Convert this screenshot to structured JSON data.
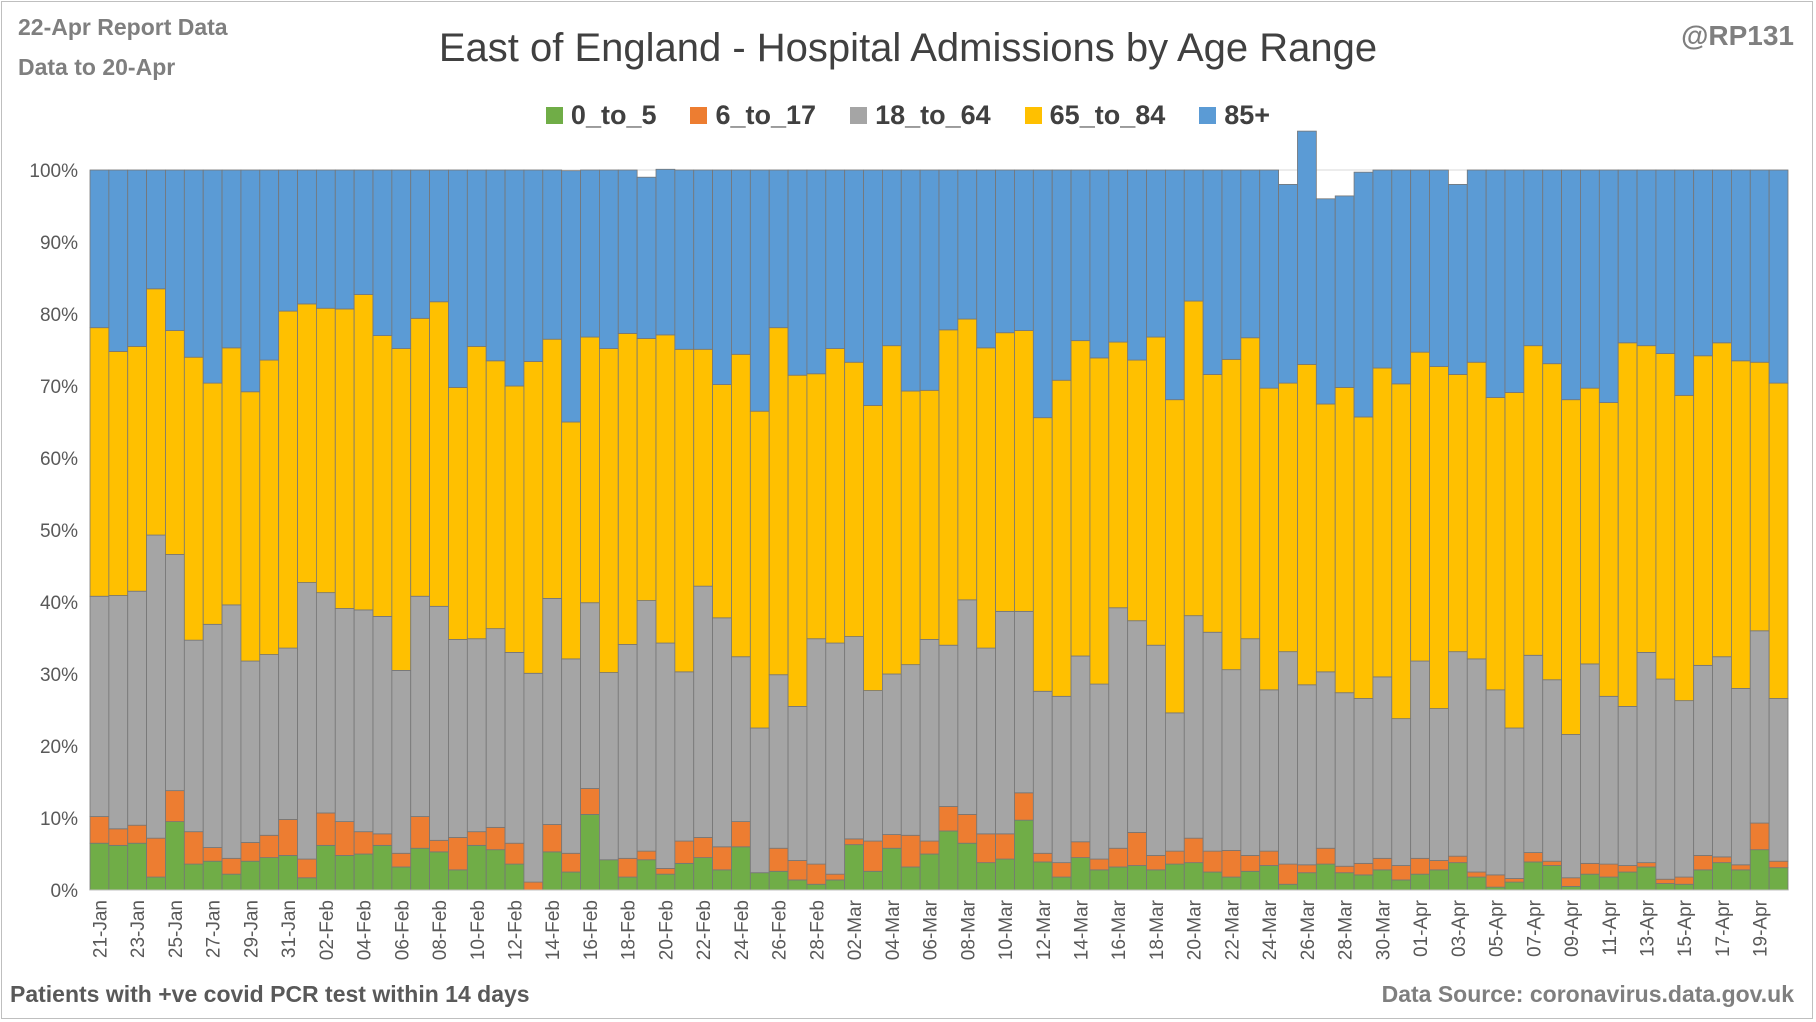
{
  "header": {
    "note_line1": "22-Apr Report Data",
    "note_line2": "Data to 20-Apr",
    "handle": "@RP131"
  },
  "footer": {
    "left": "Patients with  +ve covid PCR test within 14 days",
    "right": "Data Source: coronavirus.data.gov.uk"
  },
  "chart_data": {
    "type": "bar",
    "stacked": true,
    "normalized": true,
    "title": "East of England - Hospital Admissions by Age Range",
    "xlabel": "",
    "ylabel": "",
    "ylim": [
      0,
      100
    ],
    "yticks": [
      "0%",
      "10%",
      "20%",
      "30%",
      "40%",
      "50%",
      "60%",
      "70%",
      "80%",
      "90%",
      "100%"
    ],
    "grid": "horizontal",
    "legend_position": "top",
    "x_tick_labels": [
      "21-Jan",
      "23-Jan",
      "25-Jan",
      "27-Jan",
      "29-Jan",
      "31-Jan",
      "02-Feb",
      "04-Feb",
      "06-Feb",
      "08-Feb",
      "10-Feb",
      "12-Feb",
      "14-Feb",
      "16-Feb",
      "18-Feb",
      "20-Feb",
      "22-Feb",
      "24-Feb",
      "26-Feb",
      "28-Feb",
      "02-Mar",
      "04-Mar",
      "06-Mar",
      "08-Mar",
      "10-Mar",
      "12-Mar",
      "14-Mar",
      "16-Mar",
      "18-Mar",
      "20-Mar",
      "22-Mar",
      "24-Mar",
      "26-Mar",
      "28-Mar",
      "30-Mar",
      "01-Apr",
      "03-Apr",
      "05-Apr",
      "07-Apr",
      "09-Apr",
      "11-Apr",
      "13-Apr",
      "15-Apr",
      "17-Apr",
      "19-Apr"
    ],
    "categories": [
      "21-Jan",
      "22-Jan",
      "23-Jan",
      "24-Jan",
      "25-Jan",
      "26-Jan",
      "27-Jan",
      "28-Jan",
      "29-Jan",
      "30-Jan",
      "31-Jan",
      "01-Feb",
      "02-Feb",
      "03-Feb",
      "04-Feb",
      "05-Feb",
      "06-Feb",
      "07-Feb",
      "08-Feb",
      "09-Feb",
      "10-Feb",
      "11-Feb",
      "12-Feb",
      "13-Feb",
      "14-Feb",
      "15-Feb",
      "16-Feb",
      "17-Feb",
      "18-Feb",
      "19-Feb",
      "20-Feb",
      "21-Feb",
      "22-Feb",
      "23-Feb",
      "24-Feb",
      "25-Feb",
      "26-Feb",
      "27-Feb",
      "28-Feb",
      "01-Mar",
      "02-Mar",
      "03-Mar",
      "04-Mar",
      "05-Mar",
      "06-Mar",
      "07-Mar",
      "08-Mar",
      "09-Mar",
      "10-Mar",
      "11-Mar",
      "12-Mar",
      "13-Mar",
      "14-Mar",
      "15-Mar",
      "16-Mar",
      "17-Mar",
      "18-Mar",
      "19-Mar",
      "20-Mar",
      "21-Mar",
      "22-Mar",
      "23-Mar",
      "24-Mar",
      "25-Mar",
      "26-Mar",
      "27-Mar",
      "28-Mar",
      "29-Mar",
      "30-Mar",
      "31-Mar",
      "01-Apr",
      "02-Apr",
      "03-Apr",
      "04-Apr",
      "05-Apr",
      "06-Apr",
      "07-Apr",
      "08-Apr",
      "09-Apr",
      "10-Apr",
      "11-Apr",
      "12-Apr",
      "13-Apr",
      "14-Apr",
      "15-Apr",
      "16-Apr",
      "17-Apr",
      "18-Apr",
      "19-Apr",
      "20-Apr"
    ],
    "series": [
      {
        "name": "0_to_5",
        "color": "#70ad47",
        "values": [
          6.5,
          6.2,
          6.5,
          1.8,
          9.5,
          3.6,
          4,
          2.2,
          4,
          4.5,
          4.8,
          1.7,
          6.2,
          4.8,
          5,
          6.2,
          3.2,
          5.8,
          5.3,
          2.8,
          6.2,
          5.6,
          3.6,
          0,
          5.3,
          2.5,
          10.5,
          4.2,
          1.8,
          4.2,
          2.2,
          3.7,
          4.5,
          2.8,
          6,
          2.4,
          2.6,
          1.4,
          0.8,
          1.4,
          6.3,
          2.6,
          5.8,
          3.2,
          5,
          8.2,
          6.5,
          3.8,
          4.3,
          9.7,
          3.9,
          1.8,
          4.5,
          2.8,
          3.2,
          3.4,
          2.8,
          3.6,
          3.8,
          2.5,
          1.8,
          2.6,
          3.4,
          0.8,
          2.4,
          3.6,
          2.4,
          2.1,
          2.8,
          1.4,
          2.2,
          2.8,
          3.8,
          1.8,
          0.4,
          1.1,
          3.9,
          3.4,
          0.5,
          2.2,
          1.8,
          2.5,
          3.2,
          0.9,
          0.8,
          2.8,
          3.8,
          2.8,
          5.6,
          3.1
        ]
      },
      {
        "name": "6_to_17",
        "color": "#ed7d31",
        "values": [
          3.7,
          2.3,
          2.5,
          5.4,
          4.3,
          4.5,
          1.9,
          2.2,
          2.6,
          3.1,
          5,
          2.6,
          4.5,
          4.7,
          3.1,
          1.6,
          1.9,
          4.4,
          1.6,
          4.5,
          1.9,
          3.1,
          2.9,
          1.1,
          3.8,
          2.6,
          3.6,
          0,
          2.6,
          1.2,
          0.8,
          3.1,
          2.8,
          3.2,
          3.5,
          0,
          3.2,
          2.7,
          2.8,
          0.8,
          0.8,
          4.2,
          1.9,
          4.4,
          1.8,
          3.4,
          4,
          4,
          3.5,
          3.8,
          1.2,
          2,
          2.2,
          1.5,
          2.6,
          4.6,
          2,
          1.8,
          3.4,
          2.9,
          3.7,
          2.2,
          2,
          2.8,
          1.1,
          2.2,
          0.9,
          1.6,
          1.6,
          2,
          2.2,
          1.3,
          0.9,
          0.7,
          1.7,
          0.5,
          1.3,
          0.6,
          1.2,
          1.5,
          1.8,
          0.9,
          0.6,
          0.6,
          1,
          2,
          0.8,
          0.7,
          3.7,
          0.9
        ]
      },
      {
        "name": "18_to_64",
        "color": "#a5a5a5",
        "values": [
          30.6,
          32.4,
          32.5,
          42.1,
          32.8,
          26.6,
          31,
          35.2,
          25.2,
          25.1,
          23.8,
          38.4,
          30.6,
          29.6,
          30.8,
          30.2,
          25.4,
          30.6,
          32.5,
          27.5,
          26.8,
          27.6,
          26.5,
          29,
          31.4,
          27,
          25.8,
          26,
          29.7,
          34.8,
          31.3,
          23.5,
          34.9,
          31.8,
          22.9,
          20.1,
          24.1,
          21.4,
          31.3,
          32.1,
          28.1,
          20.9,
          22.3,
          23.7,
          28,
          22.4,
          29.8,
          25.8,
          30.9,
          25.2,
          22.5,
          23.1,
          25.8,
          24.3,
          33.4,
          29.4,
          29.2,
          19.2,
          30.9,
          30.4,
          25.1,
          30.1,
          22.4,
          29.5,
          25,
          24.5,
          24.1,
          22.9,
          25.2,
          20.4,
          27.4,
          21.1,
          28.4,
          29.6,
          25.7,
          20.9,
          27.4,
          25.2,
          19.9,
          27.7,
          23.3,
          22.1,
          29.2,
          27.8,
          24.5,
          26.4,
          27.8,
          24.5,
          26.7,
          22.6
        ]
      },
      {
        "name": "65_to_84",
        "color": "#ffc000",
        "values": [
          37.3,
          33.9,
          34,
          34.2,
          31.1,
          39.3,
          33.5,
          35.7,
          37.4,
          40.9,
          46.8,
          38.7,
          39.5,
          41.6,
          43.8,
          39,
          44.7,
          38.6,
          42.3,
          35,
          40.6,
          37.2,
          37,
          43.3,
          36,
          32.9,
          36.9,
          45,
          43.2,
          36.4,
          42.8,
          44.8,
          32.9,
          32.4,
          42,
          44,
          48.2,
          46,
          36.8,
          40.9,
          38.1,
          39.6,
          45.6,
          38,
          34.6,
          43.8,
          39,
          41.7,
          38.7,
          39,
          38,
          43.9,
          43.8,
          45.3,
          36.9,
          36.2,
          42.8,
          43.5,
          43.7,
          35.8,
          43.1,
          41.8,
          41.9,
          37.3,
          44.5,
          37.2,
          42.4,
          39.1,
          42.9,
          46.5,
          42.9,
          47.5,
          38.5,
          41.2,
          40.6,
          46.6,
          43,
          43.9,
          46.5,
          38.3,
          40.8,
          50.5,
          42.6,
          45.2,
          42.4,
          43,
          43.6,
          45.5,
          37.3,
          43.8
        ]
      },
      {
        "name": "85+",
        "color": "#5b9bd5",
        "values": [
          21.9,
          25.2,
          24.5,
          16.5,
          22.3,
          26,
          29.6,
          24.7,
          30.8,
          26.4,
          19.6,
          18.6,
          19.2,
          19.3,
          17.3,
          23,
          24.8,
          20.6,
          18.3,
          30.2,
          24.5,
          26.5,
          30,
          26.6,
          23.5,
          34.9,
          23.2,
          24.8,
          22.7,
          22.4,
          23,
          24.9,
          24.9,
          29.8,
          25.6,
          33.5,
          21.9,
          28.5,
          28.3,
          24.8,
          26.7,
          32.7,
          24.4,
          30.7,
          30.6,
          22.2,
          20.7,
          24.7,
          22.6,
          22.3,
          34.4,
          29.2,
          23.7,
          26.1,
          23.9,
          26.4,
          23.2,
          31.9,
          18.2,
          28.4,
          26.3,
          23.3,
          30.3,
          27.6,
          32.4,
          28.5,
          26.6,
          34,
          27.5,
          29.7,
          25.3,
          27.3,
          26.4,
          26.7,
          31.6,
          30.9,
          24.4,
          26.9,
          31.9,
          30.3,
          32.3,
          24,
          24.4,
          25.5,
          31.3,
          25.8,
          24,
          26.5,
          26.7,
          29.6
        ]
      }
    ]
  }
}
